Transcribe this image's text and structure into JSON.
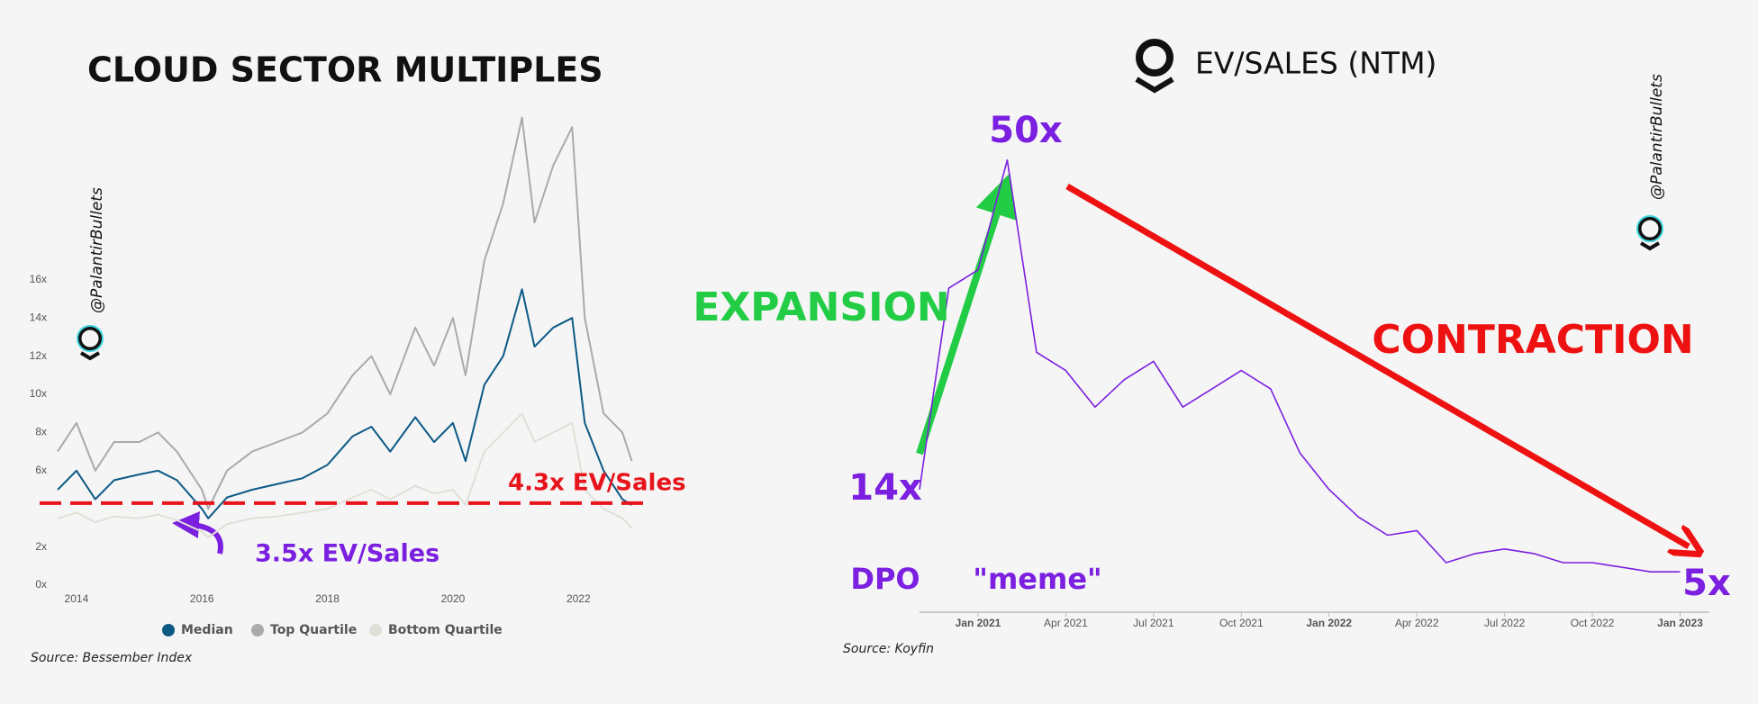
{
  "watermark": "@PalantirBullets",
  "chart_data": [
    {
      "type": "line",
      "title": "CLOUD SECTOR MULTIPLES",
      "x": [
        2013.7,
        2014.0,
        2014.3,
        2014.6,
        2015.0,
        2015.3,
        2015.6,
        2016.0,
        2016.1,
        2016.4,
        2016.8,
        2017.2,
        2017.6,
        2018.0,
        2018.4,
        2018.7,
        2019.0,
        2019.4,
        2019.7,
        2020.0,
        2020.2,
        2020.5,
        2020.8,
        2021.1,
        2021.3,
        2021.6,
        2021.9,
        2022.1,
        2022.4,
        2022.7,
        2022.85
      ],
      "series": [
        {
          "name": "Top Quartile",
          "color": "#aaaaaa",
          "values": [
            7,
            8.5,
            6,
            7.5,
            7.5,
            8,
            7,
            5,
            4,
            6,
            7,
            7.5,
            8,
            9,
            11,
            12,
            10,
            13.5,
            11.5,
            14,
            11,
            17,
            20,
            24.5,
            19,
            22,
            24,
            14,
            9,
            8,
            6.5
          ]
        },
        {
          "name": "Bottom Quartile",
          "color": "#e0e0d8",
          "values": [
            3.5,
            3.8,
            3.3,
            3.6,
            3.5,
            3.7,
            3.4,
            2.8,
            2.5,
            3.2,
            3.5,
            3.6,
            3.8,
            4,
            4.6,
            5,
            4.5,
            5.2,
            4.8,
            5,
            4.2,
            7,
            8,
            9,
            7.5,
            8,
            8.5,
            5,
            4,
            3.5,
            3
          ]
        },
        {
          "name": "Median",
          "color": "#0d5a85",
          "values": [
            5,
            6,
            4.5,
            5.5,
            5.8,
            6,
            5.5,
            4,
            3.5,
            4.6,
            5,
            5.3,
            5.6,
            6.3,
            7.8,
            8.3,
            7,
            8.8,
            7.5,
            8.5,
            6.5,
            10.5,
            12,
            15.5,
            12.5,
            13.5,
            14,
            8.5,
            6,
            4.5,
            4.2
          ]
        }
      ],
      "xlim": [
        2013.7,
        2022.9
      ],
      "xticks": [
        2014,
        2016,
        2018,
        2020,
        2022
      ],
      "ylim": [
        0,
        25
      ],
      "yticks": [
        {
          "value": 0,
          "label": "0x"
        },
        {
          "value": 2,
          "label": "2x"
        },
        {
          "value": 6,
          "label": "6x"
        },
        {
          "value": 8,
          "label": "8x"
        },
        {
          "value": 10,
          "label": "10x"
        },
        {
          "value": 12,
          "label": "12x"
        },
        {
          "value": 14,
          "label": "14x"
        },
        {
          "value": 16,
          "label": "16x"
        }
      ],
      "reference_line": {
        "value": 4.3,
        "color": "#e8141c",
        "label": "4.3x EV/Sales"
      },
      "annotations": [
        "3.5x EV/Sales"
      ],
      "legend": "bottom",
      "source": "Source: Bessember Index"
    },
    {
      "type": "line",
      "title": "EV/SALES (NTM)",
      "x": [
        "2020-11",
        "2020-12",
        "2021-01",
        "2021-02",
        "2021-03",
        "2021-04",
        "2021-05",
        "2021-06",
        "2021-07",
        "2021-08",
        "2021-09",
        "2021-10",
        "2021-11",
        "2021-12",
        "2022-01",
        "2022-02",
        "2022-03",
        "2022-04",
        "2022-05",
        "2022-06",
        "2022-07",
        "2022-08",
        "2022-09",
        "2022-10",
        "2022-11",
        "2022-12",
        "2023-01"
      ],
      "series": [
        {
          "name": "EV/Sales",
          "color": "#7b1fe0",
          "values": [
            14,
            36,
            38,
            50,
            29,
            27,
            23,
            26,
            28,
            23,
            25,
            27,
            25,
            18,
            14,
            11,
            9,
            9.5,
            6,
            7,
            7.5,
            7,
            6,
            6,
            5.5,
            5,
            5
          ]
        }
      ],
      "xlim": [
        "2020-11",
        "2023-02"
      ],
      "xticks": [
        {
          "value": "2021-01",
          "label": "Jan 2021"
        },
        {
          "value": "2021-04",
          "label": "Apr 2021"
        },
        {
          "value": "2021-07",
          "label": "Jul 2021"
        },
        {
          "value": "2021-10",
          "label": "Oct 2021"
        },
        {
          "value": "2022-01",
          "label": "Jan 2022"
        },
        {
          "value": "2022-04",
          "label": "Apr 2022"
        },
        {
          "value": "2022-07",
          "label": "Jul 2022"
        },
        {
          "value": "2022-10",
          "label": "Oct 2022"
        },
        {
          "value": "2023-01",
          "label": "Jan 2023"
        }
      ],
      "ylim": [
        0,
        55
      ],
      "annotations": [
        "50x",
        "14x",
        "5x",
        "DPO",
        "\"meme\"",
        "EXPANSION",
        "CONTRACTION"
      ],
      "source": "Source: Koyfin"
    }
  ]
}
